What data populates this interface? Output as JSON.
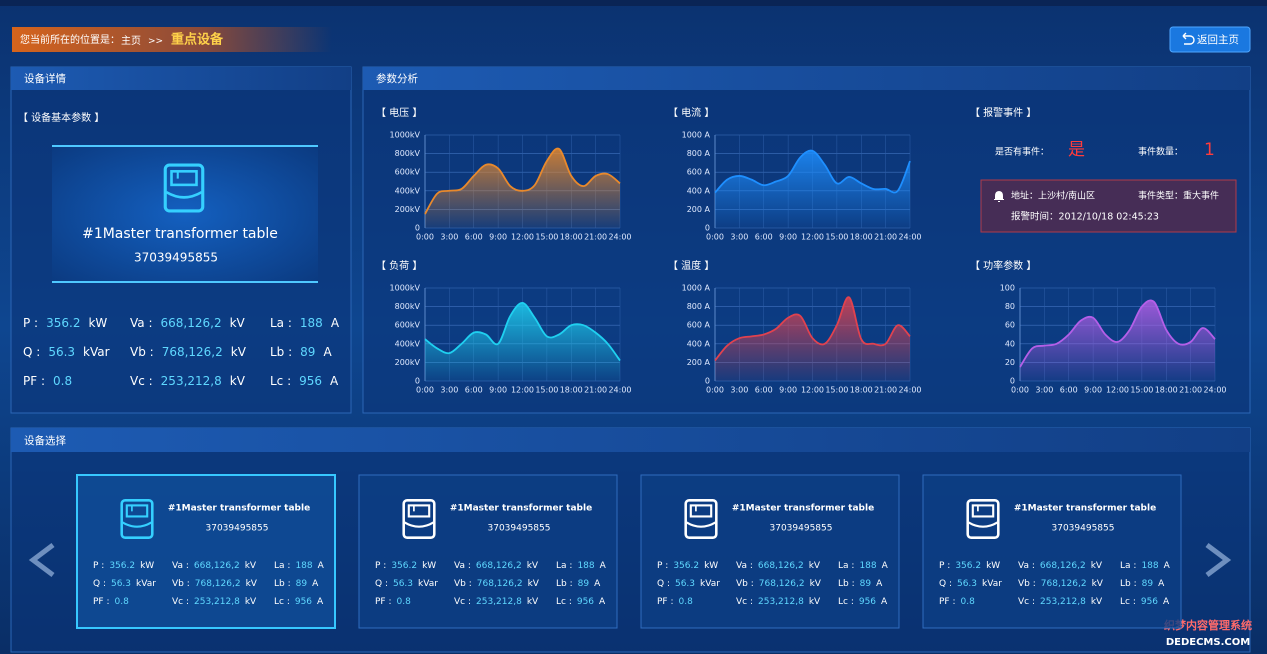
{
  "breadcrumb": {
    "prefix": "您当前所在的位置是：",
    "home": "主页",
    "separator": ">>",
    "current": "重点设备"
  },
  "back_button": "返回主页",
  "device_detail": {
    "title": "设备详情",
    "section": "【 设备基本参数 】",
    "name": "#1Master transformer table",
    "id": "37039495855",
    "params": [
      [
        {
          "label": "P :",
          "value": "356.2",
          "unit": "kW"
        },
        {
          "label": "Q :",
          "value": "56.3",
          "unit": "kVar"
        },
        {
          "label": "PF :",
          "value": "0.8"
        }
      ],
      [
        {
          "label": "Va :",
          "value": "668,126,2",
          "unit": "kV"
        },
        {
          "label": "Vb :",
          "value": "768,126,2",
          "unit": "kV"
        },
        {
          "label": "Vc :",
          "value": "253,212,8",
          "unit": "kV"
        }
      ],
      [
        {
          "label": "La :",
          "value": "188",
          "unit": "A"
        },
        {
          "label": "Lb :",
          "value": "89",
          "unit": "A"
        },
        {
          "label": "Lc :",
          "value": "956",
          "unit": "A"
        }
      ]
    ]
  },
  "analysis": {
    "title": "参数分析",
    "charts": [
      {
        "type": "line",
        "title": "【 电压 】",
        "color": "#e8892c",
        "x": [
          0,
          1.5,
          3,
          4.5,
          6,
          7.5,
          9,
          10.5,
          12,
          13.5,
          15,
          16.5,
          18,
          19.5,
          21,
          22.5,
          24
        ],
        "values": [
          150,
          370,
          400,
          420,
          560,
          680,
          640,
          450,
          400,
          460,
          720,
          850,
          560,
          450,
          560,
          580,
          480
        ],
        "xlim": [
          0,
          24
        ],
        "xticks": [
          {
            "value": 0,
            "label": "0:00"
          },
          {
            "value": 3,
            "label": "3:00"
          },
          {
            "value": 6,
            "label": "6:00"
          },
          {
            "value": 9,
            "label": "9:00"
          },
          {
            "value": 12,
            "label": "12:00"
          },
          {
            "value": 15,
            "label": "15:00"
          },
          {
            "value": 18,
            "label": "18:00"
          },
          {
            "value": 21,
            "label": "21:00"
          },
          {
            "value": 24,
            "label": "24:00"
          }
        ],
        "ylim": [
          0,
          1000
        ],
        "yticks": [
          0,
          {
            "value": 200,
            "label": "200kV"
          },
          {
            "value": 400,
            "label": "400kV"
          },
          {
            "value": 600,
            "label": "600kV"
          },
          {
            "value": 800,
            "label": "800kV"
          },
          {
            "value": 1000,
            "label": "1000kV"
          }
        ],
        "grid": true
      },
      {
        "type": "line",
        "title": "【 电流 】",
        "color": "#1e8fff",
        "x": [
          0,
          1.5,
          3,
          4.5,
          6,
          7.5,
          9,
          10.5,
          12,
          13.5,
          15,
          16.5,
          18,
          19.5,
          21,
          22.5,
          24
        ],
        "values": [
          380,
          520,
          560,
          520,
          460,
          500,
          560,
          760,
          830,
          680,
          480,
          550,
          480,
          420,
          420,
          400,
          720
        ],
        "xlim": [
          0,
          24
        ],
        "xticks": [
          {
            "value": 0,
            "label": "0:00"
          },
          {
            "value": 3,
            "label": "3:00"
          },
          {
            "value": 6,
            "label": "6:00"
          },
          {
            "value": 9,
            "label": "9:00"
          },
          {
            "value": 12,
            "label": "12:00"
          },
          {
            "value": 15,
            "label": "15:00"
          },
          {
            "value": 18,
            "label": "18:00"
          },
          {
            "value": 21,
            "label": "21:00"
          },
          {
            "value": 24,
            "label": "24:00"
          }
        ],
        "ylim": [
          0,
          1000
        ],
        "yticks": [
          0,
          {
            "value": 200,
            "label": "200 A"
          },
          {
            "value": 400,
            "label": "400 A"
          },
          {
            "value": 600,
            "label": "600 A"
          },
          {
            "value": 800,
            "label": "800 A"
          },
          {
            "value": 1000,
            "label": "1000 A"
          }
        ],
        "grid": true
      },
      {
        "type": "line",
        "title": "【 负荷 】",
        "color": "#1fd0f0",
        "x": [
          0,
          1.5,
          3,
          4.5,
          6,
          7.5,
          9,
          10.5,
          12,
          13.5,
          15,
          16.5,
          18,
          19.5,
          21,
          22.5,
          24
        ],
        "values": [
          450,
          350,
          300,
          400,
          520,
          500,
          400,
          700,
          840,
          680,
          480,
          500,
          600,
          600,
          520,
          400,
          220
        ],
        "xlim": [
          0,
          24
        ],
        "xticks": [
          {
            "value": 0,
            "label": "0:00"
          },
          {
            "value": 3,
            "label": "3:00"
          },
          {
            "value": 6,
            "label": "6:00"
          },
          {
            "value": 9,
            "label": "9:00"
          },
          {
            "value": 12,
            "label": "12:00"
          },
          {
            "value": 15,
            "label": "15:00"
          },
          {
            "value": 18,
            "label": "18:00"
          },
          {
            "value": 21,
            "label": "21:00"
          },
          {
            "value": 24,
            "label": "24:00"
          }
        ],
        "ylim": [
          0,
          1000
        ],
        "yticks": [
          0,
          {
            "value": 200,
            "label": "200kV"
          },
          {
            "value": 400,
            "label": "400kV"
          },
          {
            "value": 600,
            "label": "600kV"
          },
          {
            "value": 800,
            "label": "800kV"
          },
          {
            "value": 1000,
            "label": "1000kV"
          }
        ],
        "grid": true
      },
      {
        "type": "line",
        "title": "【 温度 】",
        "color": "#e0424f",
        "x": [
          0,
          1.5,
          3,
          4.5,
          6,
          7.5,
          9,
          10.5,
          12,
          13.5,
          15,
          16.5,
          18,
          19.5,
          21,
          22.5,
          24
        ],
        "values": [
          220,
          380,
          460,
          480,
          500,
          560,
          680,
          700,
          460,
          400,
          600,
          900,
          450,
          400,
          400,
          600,
          480
        ],
        "xlim": [
          0,
          24
        ],
        "xticks": [
          {
            "value": 0,
            "label": "0:00"
          },
          {
            "value": 3,
            "label": "3:00"
          },
          {
            "value": 6,
            "label": "6:00"
          },
          {
            "value": 9,
            "label": "9:00"
          },
          {
            "value": 12,
            "label": "12:00"
          },
          {
            "value": 15,
            "label": "15:00"
          },
          {
            "value": 18,
            "label": "18:00"
          },
          {
            "value": 21,
            "label": "21:00"
          },
          {
            "value": 24,
            "label": "24:00"
          }
        ],
        "ylim": [
          0,
          1000
        ],
        "yticks": [
          0,
          {
            "value": 200,
            "label": "200 A"
          },
          {
            "value": 400,
            "label": "400 A"
          },
          {
            "value": 600,
            "label": "600 A"
          },
          {
            "value": 800,
            "label": "800 A"
          },
          {
            "value": 1000,
            "label": "1000 A"
          }
        ],
        "grid": true
      },
      {
        "type": "line",
        "title": "【 功率参数 】",
        "color": "#b45fe8",
        "x": [
          0,
          1.5,
          3,
          4.5,
          6,
          7.5,
          9,
          10.5,
          12,
          13.5,
          15,
          16.5,
          18,
          19.5,
          21,
          22.5,
          24
        ],
        "values": [
          15,
          35,
          38,
          40,
          50,
          65,
          68,
          50,
          42,
          55,
          80,
          85,
          55,
          40,
          42,
          57,
          45
        ],
        "xlim": [
          0,
          24
        ],
        "xticks": [
          {
            "value": 0,
            "label": "0:00"
          },
          {
            "value": 3,
            "label": "3:00"
          },
          {
            "value": 6,
            "label": "6:00"
          },
          {
            "value": 9,
            "label": "9:00"
          },
          {
            "value": 12,
            "label": "12:00"
          },
          {
            "value": 15,
            "label": "15:00"
          },
          {
            "value": 18,
            "label": "18:00"
          },
          {
            "value": 21,
            "label": "21:00"
          },
          {
            "value": 24,
            "label": "24:00"
          }
        ],
        "ylim": [
          0,
          100
        ],
        "yticks": [
          0,
          20,
          40,
          60,
          80,
          100
        ],
        "grid": true
      }
    ]
  },
  "alarm": {
    "title": "【 报警事件 】",
    "has_event_label": "是否有事件：",
    "has_event": "是",
    "count_label": "事件数量：",
    "count": "1",
    "address": "地址：上沙村/南山区",
    "event_type": "事件类型：重大事件",
    "time": "报警时间：2012/10/18  02:45:23"
  },
  "selection": {
    "title": "设备选择",
    "cards": [
      {
        "name": "#1Master transformer table",
        "id": "37039495855",
        "params": [
          [
            {
              "label": "P :",
              "value": "356.2",
              "unit": "kW"
            },
            {
              "label": "Q :",
              "value": "56.3",
              "unit": "kVar"
            },
            {
              "label": "PF :",
              "value": "0.8"
            }
          ],
          [
            {
              "label": "Va :",
              "value": "668,126,2",
              "unit": "kV"
            },
            {
              "label": "Vb :",
              "value": "768,126,2",
              "unit": "kV"
            },
            {
              "label": "Vc :",
              "value": "253,212,8",
              "unit": "kV"
            }
          ],
          [
            {
              "label": "La :",
              "value": "188",
              "unit": "A"
            },
            {
              "label": "Lb :",
              "value": "89",
              "unit": "A"
            },
            {
              "label": "Lc :",
              "value": "956",
              "unit": "A"
            }
          ]
        ]
      },
      {
        "name": "#1Master transformer table",
        "id": "37039495855",
        "params": [
          [
            {
              "label": "P :",
              "value": "356.2",
              "unit": "kW"
            },
            {
              "label": "Q :",
              "value": "56.3",
              "unit": "kVar"
            },
            {
              "label": "PF :",
              "value": "0.8"
            }
          ],
          [
            {
              "label": "Va :",
              "value": "668,126,2",
              "unit": "kV"
            },
            {
              "label": "Vb :",
              "value": "768,126,2",
              "unit": "kV"
            },
            {
              "label": "Vc :",
              "value": "253,212,8",
              "unit": "kV"
            }
          ],
          [
            {
              "label": "La :",
              "value": "188",
              "unit": "A"
            },
            {
              "label": "Lb :",
              "value": "89",
              "unit": "A"
            },
            {
              "label": "Lc :",
              "value": "956",
              "unit": "A"
            }
          ]
        ]
      },
      {
        "name": "#1Master transformer table",
        "id": "37039495855",
        "params": [
          [
            {
              "label": "P :",
              "value": "356.2",
              "unit": "kW"
            },
            {
              "label": "Q :",
              "value": "56.3",
              "unit": "kVar"
            },
            {
              "label": "PF :",
              "value": "0.8"
            }
          ],
          [
            {
              "label": "Va :",
              "value": "668,126,2",
              "unit": "kV"
            },
            {
              "label": "Vb :",
              "value": "768,126,2",
              "unit": "kV"
            },
            {
              "label": "Vc :",
              "value": "253,212,8",
              "unit": "kV"
            }
          ],
          [
            {
              "label": "La :",
              "value": "188",
              "unit": "A"
            },
            {
              "label": "Lb :",
              "value": "89",
              "unit": "A"
            },
            {
              "label": "Lc :",
              "value": "956",
              "unit": "A"
            }
          ]
        ]
      },
      {
        "name": "#1Master transformer table",
        "id": "37039495855",
        "params": [
          [
            {
              "label": "P :",
              "value": "356.2",
              "unit": "kW"
            },
            {
              "label": "Q :",
              "value": "56.3",
              "unit": "kVar"
            },
            {
              "label": "PF :",
              "value": "0.8"
            }
          ],
          [
            {
              "label": "Va :",
              "value": "668,126,2",
              "unit": "kV"
            },
            {
              "label": "Vb :",
              "value": "768,126,2",
              "unit": "kV"
            },
            {
              "label": "Vc :",
              "value": "253,212,8",
              "unit": "kV"
            }
          ],
          [
            {
              "label": "La :",
              "value": "188",
              "unit": "A"
            },
            {
              "label": "Lb :",
              "value": "89",
              "unit": "A"
            },
            {
              "label": "Lc :",
              "value": "956",
              "unit": "A"
            }
          ]
        ]
      }
    ]
  },
  "watermark": [
    "织梦内容管理系统",
    "DEDECMS.COM"
  ]
}
